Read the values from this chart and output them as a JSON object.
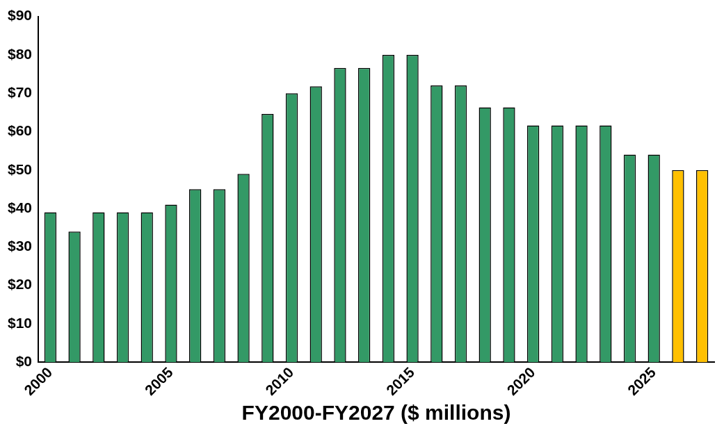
{
  "chart_data": {
    "type": "bar",
    "xlabel": "FY2000-FY2027 ($ millions)",
    "categories": [
      "2000",
      null,
      null,
      null,
      null,
      "2005",
      null,
      null,
      null,
      null,
      "2010",
      null,
      null,
      null,
      null,
      "2015",
      null,
      null,
      null,
      null,
      "2020",
      null,
      null,
      null,
      null,
      "2025",
      null,
      null
    ],
    "values": [
      39,
      34,
      39,
      39,
      39,
      41,
      45,
      45,
      49,
      64.6,
      70,
      71.8,
      76.6,
      76.6,
      80,
      80,
      72,
      72,
      66.3,
      66.3,
      61.6,
      61.6,
      61.6,
      61.6,
      54,
      54,
      50,
      50
    ],
    "colors": [
      "#339966",
      "#339966",
      "#339966",
      "#339966",
      "#339966",
      "#339966",
      "#339966",
      "#339966",
      "#339966",
      "#339966",
      "#339966",
      "#339966",
      "#339966",
      "#339966",
      "#339966",
      "#339966",
      "#339966",
      "#339966",
      "#339966",
      "#339966",
      "#339966",
      "#339966",
      "#339966",
      "#339966",
      "#339966",
      "#339966",
      "#ffc000",
      "#ffc000"
    ],
    "ylim": [
      0,
      90
    ],
    "yticks": [
      {
        "value": 0,
        "label": "$0"
      },
      {
        "value": 10,
        "label": "$10"
      },
      {
        "value": 20,
        "label": "$20"
      },
      {
        "value": 30,
        "label": "$30"
      },
      {
        "value": 40,
        "label": "$40"
      },
      {
        "value": 50,
        "label": "$50"
      },
      {
        "value": 60,
        "label": "$60"
      },
      {
        "value": 70,
        "label": "$70"
      },
      {
        "value": 80,
        "label": "$80"
      },
      {
        "value": 90,
        "label": "$90"
      }
    ]
  }
}
